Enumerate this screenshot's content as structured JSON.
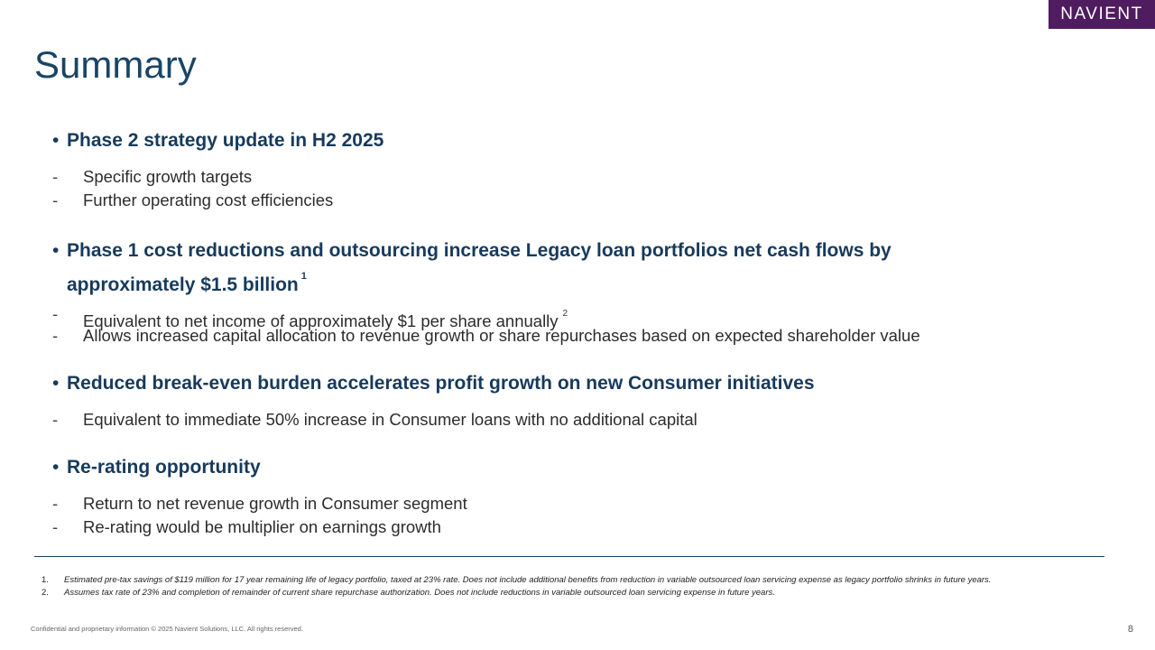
{
  "logo": "NAVIENT",
  "title": "Summary",
  "sections": [
    {
      "heading": "Phase 2 strategy update in H2 2025",
      "items": [
        "Specific growth targets",
        "Further operating cost efficiencies"
      ]
    },
    {
      "heading_line1": "Phase 1 cost reductions and outsourcing increase Legacy loan portfolios net cash flows by",
      "heading_line2": "approximately $1.5 billion",
      "heading_footnote": "1",
      "items": [
        "Equivalent to net income of approximately $1 per share annually",
        "Allows increased capital allocation to revenue growth or share repurchases based on expected shareholder value"
      ],
      "item_footnote": "2"
    },
    {
      "heading": "Reduced break-even burden accelerates profit growth on new Consumer initiatives",
      "items": [
        "Equivalent to immediate 50% increase in Consumer loans with no additional capital"
      ]
    },
    {
      "heading": "Re-rating opportunity",
      "items": [
        "Return to net revenue growth in Consumer segment",
        "Re-rating would be multiplier on earnings growth"
      ]
    }
  ],
  "footnotes": [
    {
      "num": "1.",
      "text": "Estimated pre-tax savings of $119 million for 17 year remaining life of legacy portfolio, taxed at 23% rate. Does not include additional benefits from reduction in variable outsourced loan servicing expense as legacy portfolio shrinks in future years."
    },
    {
      "num": "2.",
      "text": "Assumes tax rate of 23% and completion of remainder of current share repurchase authorization. Does not include reductions  in variable outsourced loan servicing expense in future years."
    }
  ],
  "confidential": "Confidential and proprietary information © 2025 Navient Solutions, LLC. All rights reserved.",
  "page_number": "8",
  "bullet_glyph": "•",
  "dash_glyph": "-",
  "colors": {
    "brand": "#4e1c5f",
    "heading": "#173a5c",
    "title": "#1a4565"
  }
}
